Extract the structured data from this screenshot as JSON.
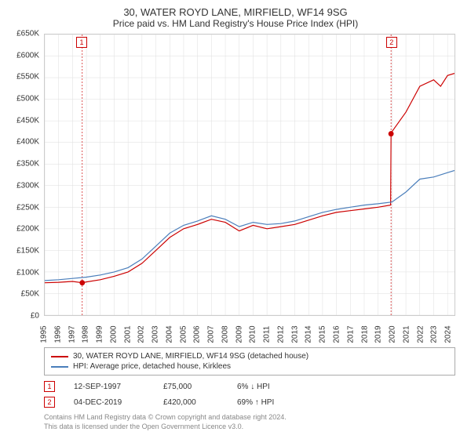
{
  "title": "30, WATER ROYD LANE, MIRFIELD, WF14 9SG",
  "subtitle": "Price paid vs. HM Land Registry's House Price Index (HPI)",
  "chart": {
    "type": "line",
    "ylim": [
      0,
      650000
    ],
    "ytick_step": 50000,
    "y_ticks": [
      "£0",
      "£50K",
      "£100K",
      "£150K",
      "£200K",
      "£250K",
      "£300K",
      "£350K",
      "£400K",
      "£450K",
      "£500K",
      "£550K",
      "£600K",
      "£650K"
    ],
    "x_years": [
      1995,
      1996,
      1997,
      1998,
      1999,
      2000,
      2001,
      2002,
      2003,
      2004,
      2005,
      2006,
      2007,
      2008,
      2009,
      2010,
      2011,
      2012,
      2013,
      2014,
      2015,
      2016,
      2017,
      2018,
      2019,
      2020,
      2021,
      2022,
      2023,
      2024
    ],
    "grid_color": "#dddddd",
    "background_color": "#ffffff",
    "border_color": "#cccccc",
    "series": [
      {
        "name": "30, WATER ROYD LANE, MIRFIELD, WF14 9SG (detached house)",
        "color": "#cc0000",
        "width": 1.2,
        "data": [
          [
            1995,
            75000
          ],
          [
            1996,
            76000
          ],
          [
            1997,
            78000
          ],
          [
            1997.7,
            75000
          ],
          [
            1998,
            77000
          ],
          [
            1999,
            82000
          ],
          [
            2000,
            90000
          ],
          [
            2001,
            100000
          ],
          [
            2002,
            120000
          ],
          [
            2003,
            150000
          ],
          [
            2004,
            180000
          ],
          [
            2005,
            200000
          ],
          [
            2006,
            210000
          ],
          [
            2007,
            222000
          ],
          [
            2008,
            215000
          ],
          [
            2009,
            195000
          ],
          [
            2010,
            208000
          ],
          [
            2011,
            200000
          ],
          [
            2012,
            205000
          ],
          [
            2013,
            210000
          ],
          [
            2014,
            220000
          ],
          [
            2015,
            230000
          ],
          [
            2016,
            238000
          ],
          [
            2017,
            242000
          ],
          [
            2018,
            246000
          ],
          [
            2019,
            250000
          ],
          [
            2019.9,
            255000
          ],
          [
            2019.93,
            420000
          ],
          [
            2020,
            425000
          ],
          [
            2021,
            470000
          ],
          [
            2022,
            530000
          ],
          [
            2023,
            545000
          ],
          [
            2023.5,
            530000
          ],
          [
            2024,
            555000
          ],
          [
            2024.5,
            560000
          ]
        ]
      },
      {
        "name": "HPI: Average price, detached house, Kirklees",
        "color": "#4a7ebb",
        "width": 1.2,
        "data": [
          [
            1995,
            80000
          ],
          [
            1996,
            82000
          ],
          [
            1997,
            85000
          ],
          [
            1998,
            88000
          ],
          [
            1999,
            93000
          ],
          [
            2000,
            100000
          ],
          [
            2001,
            110000
          ],
          [
            2002,
            130000
          ],
          [
            2003,
            160000
          ],
          [
            2004,
            190000
          ],
          [
            2005,
            208000
          ],
          [
            2006,
            218000
          ],
          [
            2007,
            230000
          ],
          [
            2008,
            222000
          ],
          [
            2009,
            205000
          ],
          [
            2010,
            215000
          ],
          [
            2011,
            210000
          ],
          [
            2012,
            212000
          ],
          [
            2013,
            218000
          ],
          [
            2014,
            228000
          ],
          [
            2015,
            238000
          ],
          [
            2016,
            245000
          ],
          [
            2017,
            250000
          ],
          [
            2018,
            255000
          ],
          [
            2019,
            258000
          ],
          [
            2020,
            262000
          ],
          [
            2021,
            285000
          ],
          [
            2022,
            315000
          ],
          [
            2023,
            320000
          ],
          [
            2024,
            330000
          ],
          [
            2024.5,
            335000
          ]
        ]
      }
    ],
    "sale_markers": [
      {
        "num": "1",
        "x": 1997.7,
        "y": 75000,
        "color": "#cc0000",
        "vline_color": "#cc0000"
      },
      {
        "num": "2",
        "x": 2019.93,
        "y": 420000,
        "color": "#cc0000",
        "vline_color": "#cc0000"
      }
    ]
  },
  "legend": {
    "series1_label": "30, WATER ROYD LANE, MIRFIELD, WF14 9SG (detached house)",
    "series2_label": "HPI: Average price, detached house, Kirklees"
  },
  "sales": [
    {
      "num": "1",
      "date": "12-SEP-1997",
      "price": "£75,000",
      "diff": "6% ↓ HPI",
      "color": "#cc0000"
    },
    {
      "num": "2",
      "date": "04-DEC-2019",
      "price": "£420,000",
      "diff": "69% ↑ HPI",
      "color": "#cc0000"
    }
  ],
  "footer_line1": "Contains HM Land Registry data © Crown copyright and database right 2024.",
  "footer_line2": "This data is licensed under the Open Government Licence v3.0."
}
